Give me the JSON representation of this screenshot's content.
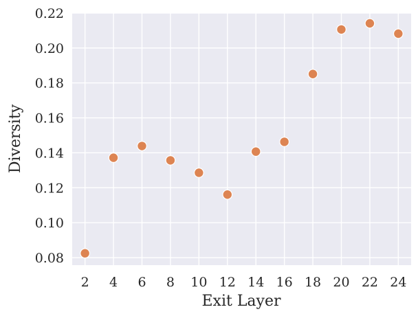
{
  "chart_data": {
    "type": "scatter",
    "title": "",
    "xlabel": "Exit Layer",
    "ylabel": "Diversity",
    "x": [
      2,
      4,
      6,
      8,
      10,
      12,
      14,
      16,
      18,
      20,
      22,
      24
    ],
    "y": [
      0.0825,
      0.1372,
      0.1439,
      0.1357,
      0.1286,
      0.1161,
      0.1407,
      0.1463,
      0.1851,
      0.2106,
      0.2141,
      0.2082
    ],
    "xticks": [
      "2",
      "4",
      "6",
      "8",
      "10",
      "12",
      "14",
      "16",
      "18",
      "20",
      "22",
      "24"
    ],
    "yticks": [
      "0.08",
      "0.10",
      "0.12",
      "0.14",
      "0.16",
      "0.18",
      "0.20",
      "0.22"
    ],
    "xlim": [
      1.1,
      24.9
    ],
    "ylim": [
      0.0757,
      0.22
    ],
    "grid": true,
    "colors": {
      "background": "#eaeaf2",
      "grid": "#ffffff",
      "marker": "#dd8452",
      "marker_edge": "#ffffff"
    }
  }
}
